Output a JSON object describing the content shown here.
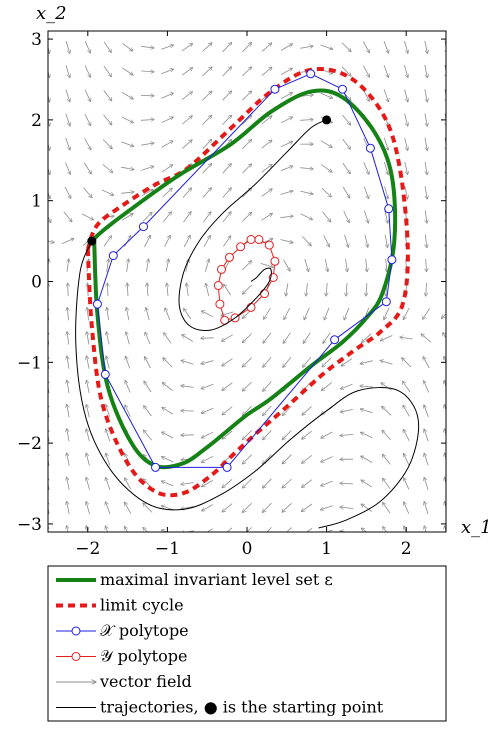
{
  "chart_data": {
    "type": "line",
    "title": "",
    "xlabel": "x_1",
    "ylabel": "x_2",
    "xlim": [
      -2.5,
      2.5
    ],
    "ylim": [
      -3.1,
      3.1
    ],
    "xticks": [
      -2,
      -1,
      0,
      1,
      2
    ],
    "yticks": [
      -3,
      -2,
      -1,
      0,
      1,
      2,
      3
    ],
    "xtick_labels": [
      "−2",
      "−1",
      "0",
      "1",
      "2"
    ],
    "ytick_labels": [
      "−3",
      "−2",
      "−1",
      "0",
      "1",
      "2",
      "3"
    ],
    "grid": false,
    "legend_position": "below",
    "colors": {
      "invariant_set": "#148214",
      "limit_cycle": "#e61919",
      "x_polytope": "#1e1ee6",
      "y_polytope": "#e61e1e",
      "vector_field": "#808080",
      "trajectory": "#000000"
    },
    "series": [
      {
        "name": "maximal invariant level set ε",
        "kind": "invariant_set",
        "x": [
          -1.92,
          -1.88,
          -1.75,
          -1.45,
          -1.15,
          -0.8,
          -0.5,
          -0.25,
          0.0,
          0.3,
          0.8,
          1.2,
          1.5,
          1.7,
          1.85,
          1.82,
          1.6,
          1.2,
          0.8,
          0.3,
          -0.2,
          -0.8,
          -1.1,
          -1.45,
          -1.72,
          -1.9,
          -1.92
        ],
        "y": [
          0.5,
          -0.4,
          -1.3,
          -2.0,
          -2.28,
          -2.25,
          -2.05,
          -1.85,
          -1.65,
          -1.45,
          -1.05,
          -0.75,
          -0.45,
          -0.15,
          0.5,
          1.3,
          1.85,
          2.28,
          2.35,
          2.1,
          1.7,
          1.35,
          1.15,
          0.9,
          0.7,
          0.55,
          0.5
        ]
      },
      {
        "name": "limit cycle",
        "kind": "limit_cycle",
        "x": [
          -2.0,
          -1.95,
          -1.82,
          -1.5,
          -1.15,
          -0.8,
          -0.45,
          -0.15,
          0.15,
          0.5,
          0.95,
          1.35,
          1.68,
          1.95,
          2.02,
          1.92,
          1.72,
          1.3,
          0.8,
          0.3,
          -0.2,
          -0.75,
          -1.15,
          -1.55,
          -1.88,
          -2.0
        ],
        "y": [
          0.4,
          -0.55,
          -1.5,
          -2.25,
          -2.6,
          -2.62,
          -2.4,
          -2.12,
          -1.85,
          -1.55,
          -1.15,
          -0.85,
          -0.62,
          -0.3,
          0.4,
          1.4,
          2.05,
          2.52,
          2.62,
          2.35,
          1.9,
          1.4,
          1.2,
          0.95,
          0.7,
          0.4
        ]
      },
      {
        "name": "𝒳 polytope",
        "kind": "x_polytope",
        "x": [
          -1.15,
          -0.25,
          1.1,
          1.75,
          1.82,
          1.78,
          1.55,
          1.2,
          0.8,
          0.35,
          -1.3,
          -1.68,
          -1.88,
          -1.78,
          -1.15
        ],
        "y": [
          -2.3,
          -2.3,
          -0.72,
          -0.25,
          0.27,
          0.9,
          1.65,
          2.38,
          2.57,
          2.38,
          0.68,
          0.32,
          -0.28,
          -1.15,
          -2.3
        ]
      },
      {
        "name": "𝒴 polytope",
        "kind": "y_polytope",
        "x": [
          0.15,
          0.28,
          0.35,
          0.33,
          0.22,
          0.05,
          -0.15,
          -0.28,
          -0.34,
          -0.36,
          -0.32,
          -0.22,
          -0.08,
          0.05,
          0.15
        ],
        "y": [
          0.52,
          0.45,
          0.25,
          0.05,
          -0.15,
          -0.32,
          -0.45,
          -0.48,
          -0.28,
          -0.05,
          0.15,
          0.3,
          0.43,
          0.52,
          0.52
        ]
      }
    ],
    "trajectories": [
      {
        "start": [
          -1.95,
          0.5
        ],
        "x": [
          -1.95,
          -2.1,
          -2.15,
          -2.02,
          -1.7,
          -1.25,
          -0.8,
          -0.35,
          0.1,
          0.55,
          1.0,
          1.4,
          1.9,
          2.15,
          2.05,
          1.7,
          1.25,
          0.9
        ],
        "y": [
          0.5,
          0.1,
          -0.8,
          -1.7,
          -2.35,
          -2.75,
          -2.82,
          -2.65,
          -2.35,
          -1.95,
          -1.6,
          -1.35,
          -1.35,
          -1.7,
          -2.25,
          -2.7,
          -2.95,
          -3.05
        ]
      },
      {
        "start": [
          1.0,
          2.0
        ],
        "x": [
          1.0,
          0.8,
          0.5,
          0.1,
          -0.3,
          -0.6,
          -0.8,
          -0.85,
          -0.72,
          -0.45,
          -0.15,
          0.12,
          0.28,
          0.3,
          0.22,
          0.12,
          0.05
        ],
        "y": [
          2.0,
          1.9,
          1.6,
          1.2,
          0.85,
          0.5,
          0.1,
          -0.3,
          -0.55,
          -0.6,
          -0.45,
          -0.2,
          0.0,
          0.15,
          0.15,
          0.05,
          0.0
        ]
      }
    ],
    "legend": [
      {
        "label": "maximal invariant level set ε",
        "kind": "invariant_set"
      },
      {
        "label": "limit cycle",
        "kind": "limit_cycle"
      },
      {
        "label": "𝒳 polytope",
        "kind": "x_polytope"
      },
      {
        "label": "𝒴 polytope",
        "kind": "y_polytope"
      },
      {
        "label": "vector field",
        "kind": "vector_field"
      },
      {
        "label": "trajectories, ● is the starting point",
        "kind": "trajectory"
      }
    ]
  }
}
